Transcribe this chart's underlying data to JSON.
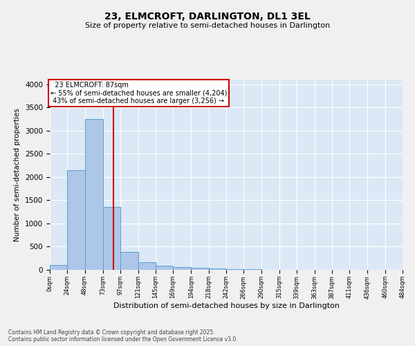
{
  "title": "23, ELMCROFT, DARLINGTON, DL1 3EL",
  "subtitle": "Size of property relative to semi-detached houses in Darlington",
  "xlabel": "Distribution of semi-detached houses by size in Darlington",
  "ylabel": "Number of semi-detached properties",
  "footer_line1": "Contains HM Land Registry data © Crown copyright and database right 2025.",
  "footer_line2": "Contains public sector information licensed under the Open Government Licence v3.0.",
  "bin_edges": [
    0,
    24,
    48,
    73,
    97,
    121,
    145,
    169,
    194,
    218,
    242,
    266,
    290,
    315,
    339,
    363,
    387,
    411,
    436,
    460,
    484
  ],
  "bar_heights": [
    100,
    2150,
    3250,
    1350,
    390,
    160,
    90,
    55,
    45,
    30,
    15,
    8,
    5,
    3,
    2,
    1,
    1,
    0,
    0,
    0
  ],
  "bar_color": "#aec6e8",
  "bar_edge_color": "#5a9fd4",
  "property_size": 87,
  "property_label": "23 ELMCROFT: 87sqm",
  "pct_smaller": 55,
  "count_smaller": 4204,
  "pct_larger": 43,
  "count_larger": 3256,
  "annotation_box_color": "#cc0000",
  "vline_color": "#cc0000",
  "ylim": [
    0,
    4100
  ],
  "background_color": "#dce8f5",
  "fig_background_color": "#f0f0f0",
  "grid_color": "#ffffff",
  "tick_labels": [
    "0sqm",
    "24sqm",
    "48sqm",
    "73sqm",
    "97sqm",
    "121sqm",
    "145sqm",
    "169sqm",
    "194sqm",
    "218sqm",
    "242sqm",
    "266sqm",
    "290sqm",
    "315sqm",
    "339sqm",
    "363sqm",
    "387sqm",
    "411sqm",
    "436sqm",
    "460sqm",
    "484sqm"
  ]
}
